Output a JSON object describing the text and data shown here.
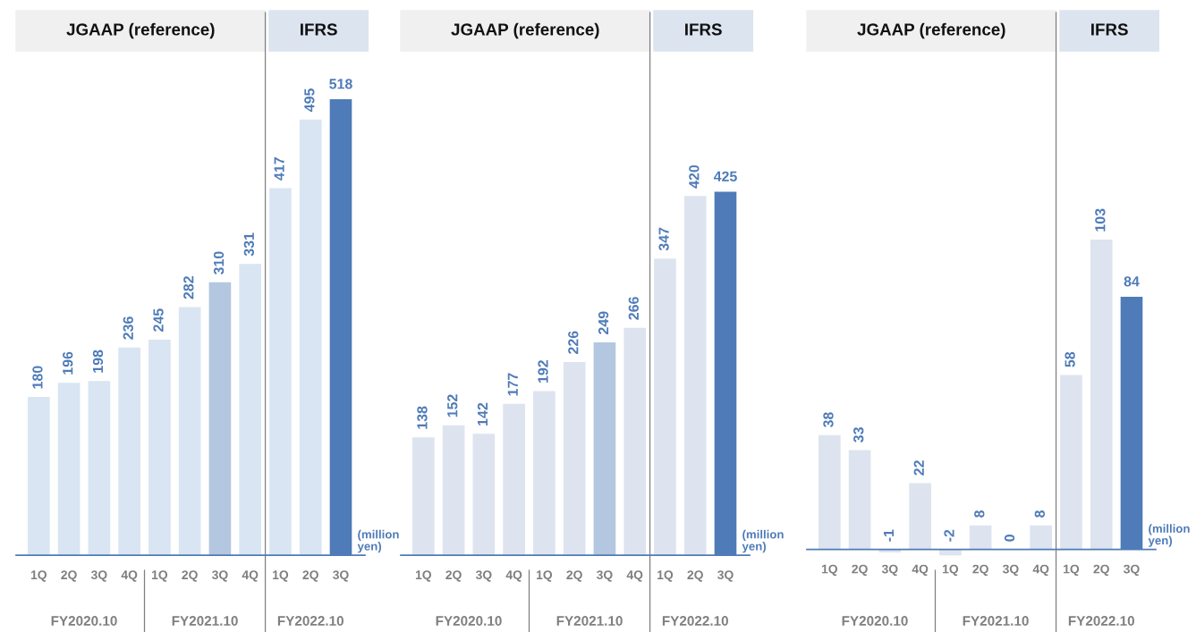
{
  "chart_data": [
    {
      "type": "bar",
      "categories": [
        "1Q",
        "2Q",
        "3Q",
        "4Q",
        "1Q",
        "2Q",
        "3Q",
        "4Q",
        "1Q",
        "2Q",
        "3Q"
      ],
      "values": [
        180,
        196,
        198,
        236,
        245,
        282,
        310,
        331,
        417,
        495,
        518
      ],
      "colors": [
        "#d9e5f2",
        "#d9e5f2",
        "#d9e5f2",
        "#d9e5f2",
        "#d9e5f2",
        "#d9e5f2",
        "#b4c7e0",
        "#d9e5f2",
        "#d9e5f2",
        "#d9e5f2",
        "#4f7bb8"
      ],
      "data_labels": true,
      "annotations": [
        "JGAAP (reference)",
        "IFRS",
        "FY2020.10",
        "FY2021.10",
        "FY2022.10",
        "(million\nyen)"
      ]
    },
    {
      "type": "bar",
      "categories": [
        "1Q",
        "2Q",
        "3Q",
        "4Q",
        "1Q",
        "2Q",
        "3Q",
        "4Q",
        "1Q",
        "2Q",
        "3Q"
      ],
      "values": [
        138,
        152,
        142,
        177,
        192,
        226,
        249,
        266,
        347,
        420,
        425
      ],
      "colors": [
        "#dde4ef",
        "#dde4ef",
        "#dde4ef",
        "#dde4ef",
        "#dde4ef",
        "#dde4ef",
        "#b4c7e0",
        "#dde4ef",
        "#dde4ef",
        "#dde4ef",
        "#4f7bb8"
      ],
      "data_labels": true,
      "annotations": [
        "JGAAP (reference)",
        "IFRS",
        "FY2020.10",
        "FY2021.10",
        "FY2022.10",
        "(million\nyen)"
      ]
    },
    {
      "type": "bar",
      "categories": [
        "1Q",
        "2Q",
        "3Q",
        "4Q",
        "1Q",
        "2Q",
        "3Q",
        "4Q",
        "1Q",
        "2Q",
        "3Q"
      ],
      "values": [
        38,
        33,
        -1,
        22,
        -2,
        8,
        0,
        8,
        58,
        103,
        84
      ],
      "colors": [
        "#dde4ef",
        "#dde4ef",
        "#dde4ef",
        "#dde4ef",
        "#dde4ef",
        "#dde4ef",
        "#dde4ef",
        "#dde4ef",
        "#dde4ef",
        "#dde4ef",
        "#4f7bb8"
      ],
      "data_labels": true,
      "annotations": [
        "JGAAP (reference)",
        "IFRS",
        "FY2020.10",
        "FY2021.10",
        "FY2022.10",
        "(million\nyen)"
      ]
    }
  ]
}
